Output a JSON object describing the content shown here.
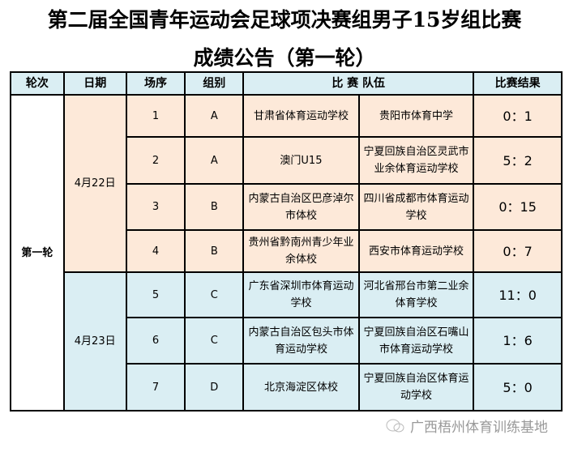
{
  "title": {
    "line1": "第二届全国青年运动会足球项决赛组男子15岁组比赛",
    "line2": "成绩公告（第一轮）"
  },
  "headers": {
    "round": "轮次",
    "date": "日期",
    "match": "场序",
    "group": "组别",
    "teams": "比 赛 队伍",
    "result": "比赛结果"
  },
  "round": "第一轮",
  "dates": [
    "4月22日",
    "4月23日"
  ],
  "rows": [
    {
      "no": "1",
      "group": "A",
      "team1": "甘肃省体育运动学校",
      "team2": "贵阳市体育中学",
      "score": "0：1"
    },
    {
      "no": "2",
      "group": "A",
      "team1": "澳门U15",
      "team2": "宁夏回族自治区灵武市业余体育运动学校",
      "score": "5：2"
    },
    {
      "no": "3",
      "group": "B",
      "team1": "内蒙古自治区巴彦淖尔市体校",
      "team2": "四川省成都市体育运动学校",
      "score": "0：15"
    },
    {
      "no": "4",
      "group": "B",
      "team1": "贵州省黔南州青少年业余体校",
      "team2": "西安市体育运动学校",
      "score": "0：7"
    },
    {
      "no": "5",
      "group": "C",
      "team1": "广东省深圳市体育运动学校",
      "team2": "河北省邢台市第二业余体育学校",
      "score": "11：0"
    },
    {
      "no": "6",
      "group": "C",
      "team1": "内蒙古自治区包头市体育运动学校",
      "team2": "宁夏回族自治区石嘴山市体育运动学校",
      "score": "1：6"
    },
    {
      "no": "7",
      "group": "D",
      "team1": "北京海淀区体校",
      "team2": "宁夏回族自治区体育运动学校",
      "score": "5：0"
    }
  ],
  "watermark": "广西梧州体育训练基地",
  "colors": {
    "header": "#daeef3",
    "day1": "#fde9d9",
    "day2": "#daeef3"
  }
}
